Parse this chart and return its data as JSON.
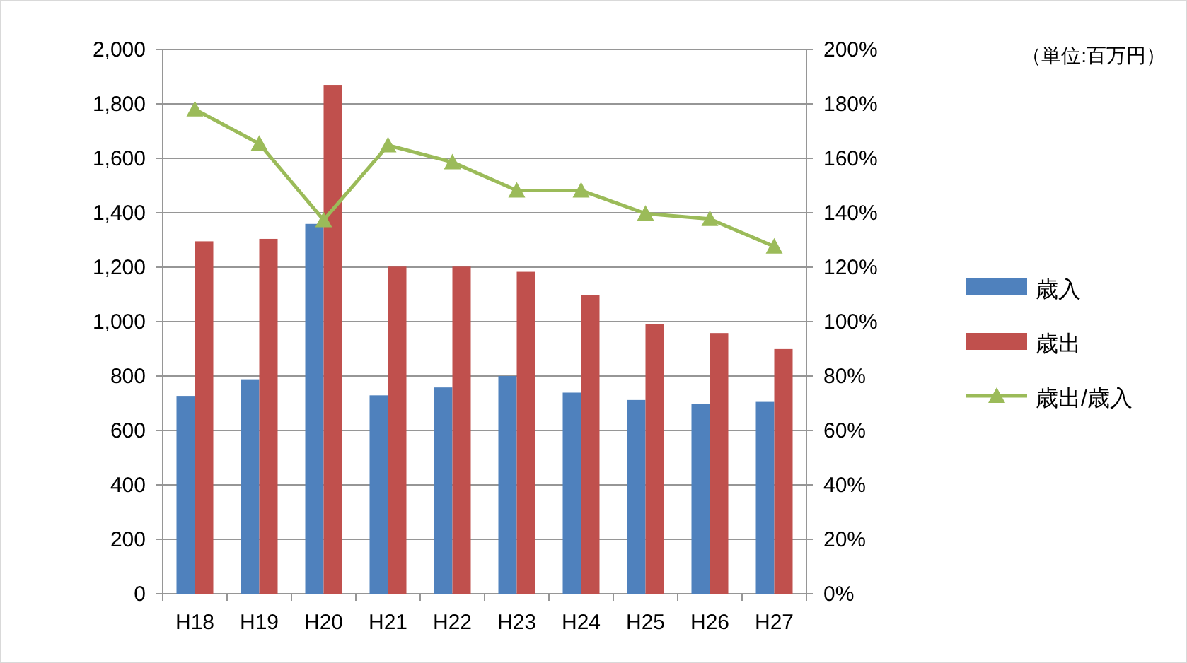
{
  "chart_data": {
    "type": "bar",
    "categories": [
      "H18",
      "H19",
      "H20",
      "H21",
      "H22",
      "H23",
      "H24",
      "H25",
      "H26",
      "H27"
    ],
    "series": [
      {
        "name": "歳入",
        "color": "#4f81bd",
        "values": [
          727,
          788,
          1359,
          729,
          758,
          800,
          739,
          712,
          698,
          705
        ]
      },
      {
        "name": "歳出",
        "color": "#c0504d",
        "values": [
          1295,
          1304,
          1870,
          1202,
          1202,
          1183,
          1098,
          992,
          958,
          899
        ]
      },
      {
        "name": "歳出/歳入",
        "type": "line",
        "axis": "y2",
        "color": "#9bbb59",
        "marker": "triangle",
        "values": [
          178,
          165.4,
          137.3,
          164.8,
          158.6,
          148.2,
          148.2,
          139.7,
          137.7,
          127.6
        ]
      }
    ],
    "ylim": [
      0,
      2000
    ],
    "yticks": [
      0,
      200,
      400,
      600,
      800,
      {
        "value": 1000,
        "label": "1,000"
      },
      {
        "value": 1200,
        "label": "1,200"
      },
      {
        "value": 1400,
        "label": "1,400"
      },
      {
        "value": 1600,
        "label": "1,600"
      },
      {
        "value": 1800,
        "label": "1,800"
      },
      {
        "value": 2000,
        "label": "2,000"
      }
    ],
    "y2lim": [
      0,
      200
    ],
    "y2ticks": [
      {
        "value": 0,
        "label": "0%"
      },
      {
        "value": 20,
        "label": "20%"
      },
      {
        "value": 40,
        "label": "40%"
      },
      {
        "value": 60,
        "label": "60%"
      },
      {
        "value": 80,
        "label": "80%"
      },
      {
        "value": 100,
        "label": "100%"
      },
      {
        "value": 120,
        "label": "120%"
      },
      {
        "value": 140,
        "label": "140%"
      },
      {
        "value": 160,
        "label": "160%"
      },
      {
        "value": 180,
        "label": "180%"
      },
      {
        "value": 200,
        "label": "200%"
      }
    ],
    "grid": "y",
    "legend": "right",
    "annotations": [
      "（単位:百万円）"
    ]
  }
}
